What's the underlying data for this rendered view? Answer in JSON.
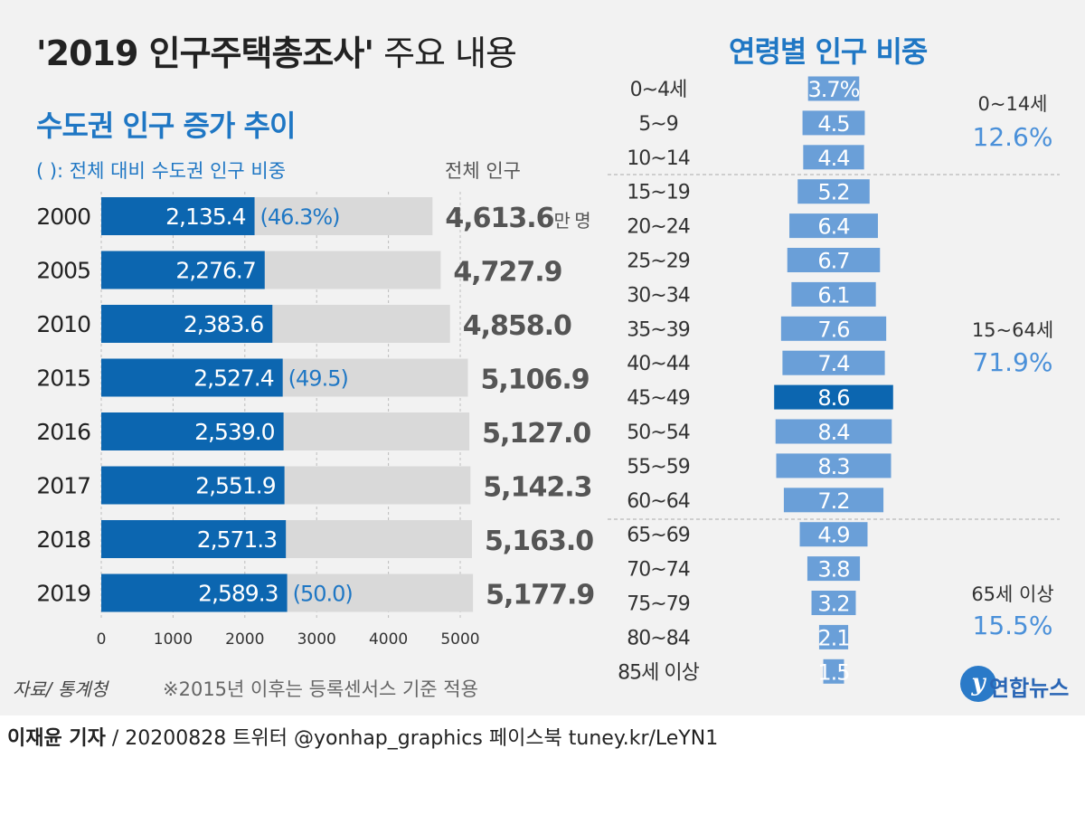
{
  "title": {
    "main": "'2019 인구주택총조사'",
    "suffix": " 주요 내용"
  },
  "left": {
    "title": "수도권 인구 증가 추이",
    "note": "(  ): 전체 대비 수도권 인구 비중",
    "total_header": "전체 인구"
  },
  "right": {
    "title": "연령별 인구 비중"
  },
  "source": "자료/ 통계청",
  "footnote": "※2015년 이후는 등록센서스 기준 적용",
  "credit": {
    "reporter": "이재윤 기자",
    "rest": " / 20200828   트위터 @yonhap_graphics  페이스북 tuney.kr/LeYN1"
  },
  "logo": {
    "mark": "y",
    "text": "연합뉴스"
  },
  "colors": {
    "accent": "#1f77c4",
    "bar_dark": "#0c66b0",
    "bar_gray": "#d9d9d9",
    "age_bar": "#6a9fd8",
    "age_highlight": "#0c66b0",
    "group_text": "#4a90d9"
  },
  "chart_data": [
    {
      "type": "bar",
      "orientation": "horizontal",
      "title": "수도권 인구 증가 추이",
      "categories": [
        "2000",
        "2005",
        "2010",
        "2015",
        "2016",
        "2017",
        "2018",
        "2019"
      ],
      "series": [
        {
          "name": "수도권 인구",
          "values": [
            2135.4,
            2276.7,
            2383.6,
            2527.4,
            2539.0,
            2551.9,
            2571.3,
            2589.3
          ]
        },
        {
          "name": "전체 인구",
          "values": [
            4613.6,
            4727.9,
            4858.0,
            5106.9,
            5127.0,
            5142.3,
            5163.0,
            5177.9
          ]
        }
      ],
      "value_labels": [
        "2,135.4",
        "2,276.7",
        "2,383.6",
        "2,527.4",
        "2,539.0",
        "2,551.9",
        "2,571.3",
        "2,589.3"
      ],
      "total_labels": [
        "4,613.6",
        "4,727.9",
        "4,858.0",
        "5,106.9",
        "5,127.0",
        "5,142.3",
        "5,163.0",
        "5,177.9"
      ],
      "total_unit": "만 명",
      "share_labels": [
        "(46.3%)",
        "",
        "",
        "(49.5)",
        "",
        "",
        "",
        "(50.0)"
      ],
      "xticks": [
        "0",
        "1000",
        "2000",
        "3000",
        "4000",
        "5000"
      ],
      "xlim": [
        0,
        5000
      ]
    },
    {
      "type": "bar",
      "orientation": "horizontal-centered",
      "title": "연령별 인구 비중",
      "categories": [
        "0~4세",
        "5~9",
        "10~14",
        "15~19",
        "20~24",
        "25~29",
        "30~34",
        "35~39",
        "40~44",
        "45~49",
        "50~54",
        "55~59",
        "60~64",
        "65~69",
        "70~74",
        "75~79",
        "80~84",
        "85세 이상"
      ],
      "values": [
        3.7,
        4.5,
        4.4,
        5.2,
        6.4,
        6.7,
        6.1,
        7.6,
        7.4,
        8.6,
        8.4,
        8.3,
        7.2,
        4.9,
        3.8,
        3.2,
        2.1,
        1.5
      ],
      "value_labels": [
        "3.7%",
        "4.5",
        "4.4",
        "5.2",
        "6.4",
        "6.7",
        "6.1",
        "7.6",
        "7.4",
        "8.6",
        "8.4",
        "8.3",
        "7.2",
        "4.9",
        "3.8",
        "3.2",
        "2.1",
        "1.5"
      ],
      "highlight": "45~49",
      "groups": [
        {
          "label": "0~14세",
          "share": "12.6%"
        },
        {
          "label": "15~64세",
          "share": "71.9%"
        },
        {
          "label": "65세 이상",
          "share": "15.5%"
        }
      ]
    }
  ]
}
